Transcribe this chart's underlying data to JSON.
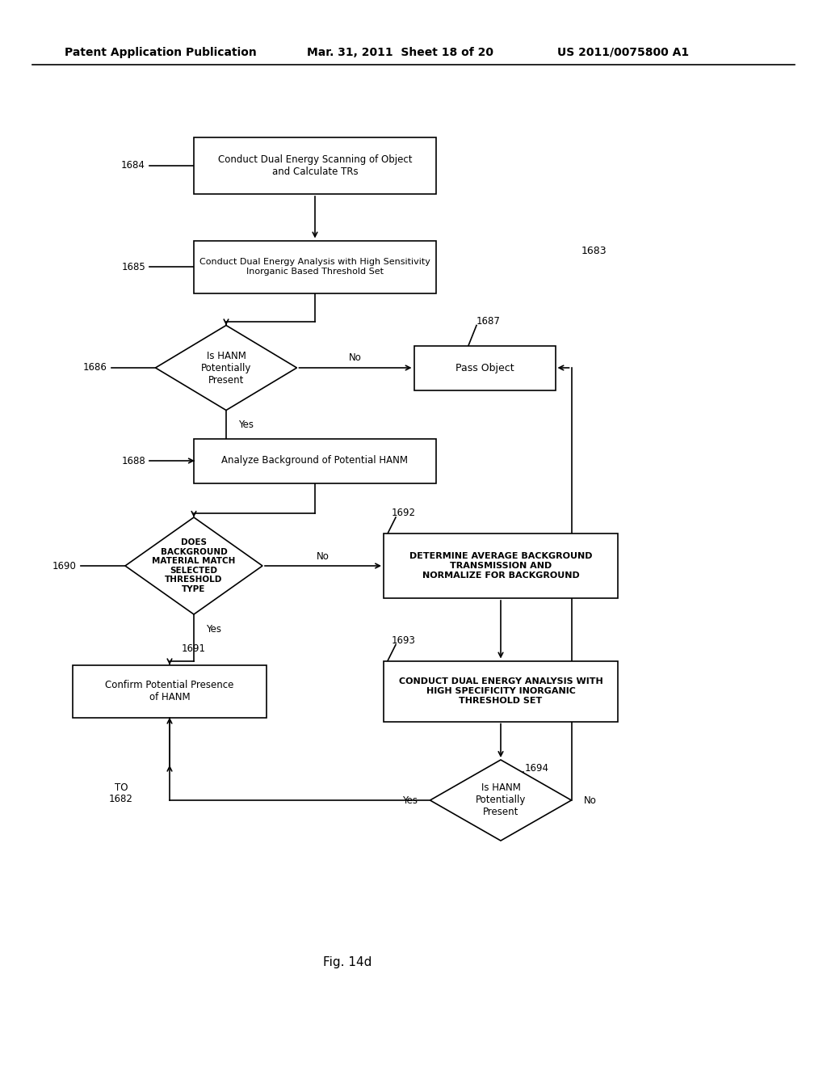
{
  "title_left": "Patent Application Publication",
  "title_mid": "Mar. 31, 2011  Sheet 18 of 20",
  "title_right": "US 2011/0075800 A1",
  "fig_label": "Fig. 14d",
  "background_color": "#ffffff"
}
